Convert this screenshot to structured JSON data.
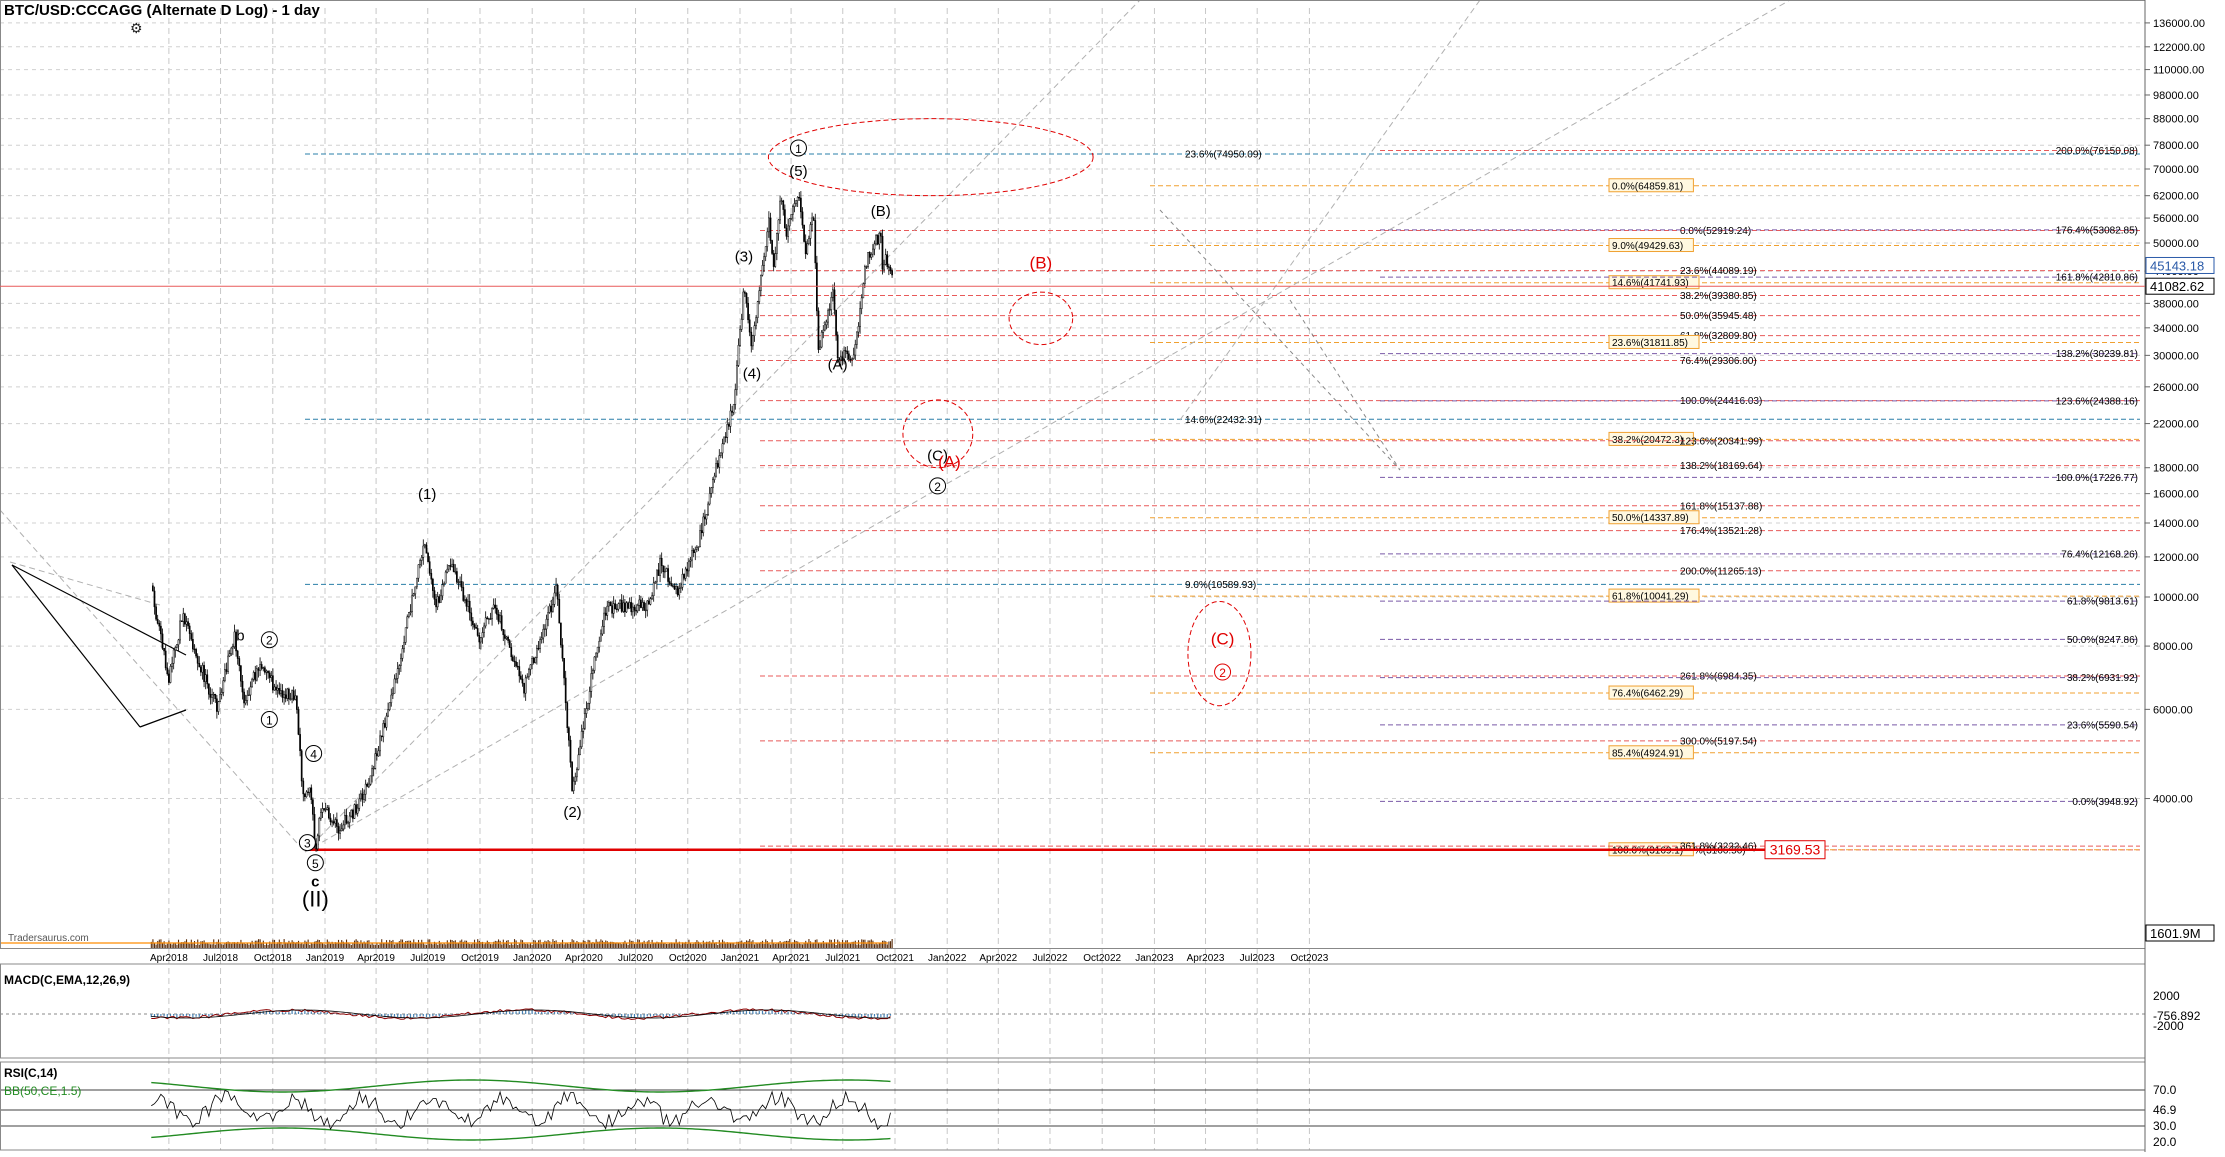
{
  "header": {
    "title": "BTC/USD:CCCAGG (Alternate D Log) - 1 day",
    "macd_label": "MACD(C,EMA,12,26,9)",
    "rsi_label": "RSI(C,14)",
    "bb_label": "BB(50,CE,1.5)"
  },
  "icons": {
    "settings": "gear-icon"
  },
  "colors": {
    "candles": "#000000",
    "volume": "#5a2d0c",
    "volume_ma": "#ff8c00",
    "fib_red": "#e85a5a",
    "fib_blue": "#2a7fa8",
    "fib_orange": "#f0a030",
    "fib_purple": "#7a5aa8",
    "wave_red": "#e00000",
    "macd_line": "#8b0000",
    "macd_hist": "#4682b4",
    "rsi_band": "#228b22",
    "support_line": "#e00000"
  },
  "price_label_current": "45143.18",
  "price_label_secondary": "41082.62",
  "price_label_support": "3169.53",
  "volume_label": "1601.9M",
  "macd_labels": [
    "2000",
    "-756.892",
    "-2000"
  ],
  "rsi_labels": [
    "70.0",
    "46.9",
    "30.0",
    "20.0"
  ],
  "watermark": "Tradersaurus.com",
  "chart_data": {
    "type": "candlestick",
    "scale": "log",
    "y_axis_ticks": [
      "136000.00",
      "122000.00",
      "110000.00",
      "98000.00",
      "88000.00",
      "78000.00",
      "70000.00",
      "62000.00",
      "56000.00",
      "50000.00",
      "44000.00",
      "38000.00",
      "34000.00",
      "30000.00",
      "26000.00",
      "22000.00",
      "18000.00",
      "16000.00",
      "14000.00",
      "12000.00",
      "10000.00",
      "8000.00",
      "6000.00",
      "4000.00"
    ],
    "x_axis_ticks": [
      "Apr2018",
      "Jul2018",
      "Oct2018",
      "Jan2019",
      "Apr2019",
      "Jul2019",
      "Oct2019",
      "Jan2020",
      "Apr2020",
      "Jul2020",
      "Oct2020",
      "Jan2021",
      "Apr2021",
      "Jul2021",
      "Oct2021",
      "Jan2022",
      "Apr2022",
      "Jul2022",
      "Oct2022",
      "Jan2023",
      "Apr2023",
      "Jul2023",
      "Oct2023"
    ],
    "price_path": [
      [
        "2018-03-01",
        10800
      ],
      [
        "2018-03-10",
        9200
      ],
      [
        "2018-04-01",
        6900
      ],
      [
        "2018-04-25",
        9200
      ],
      [
        "2018-05-25",
        7400
      ],
      [
        "2018-06-25",
        6000
      ],
      [
        "2018-07-25",
        8400
      ],
      [
        "2018-08-12",
        6100
      ],
      [
        "2018-09-05",
        7300
      ],
      [
        "2018-10-10",
        6550
      ],
      [
        "2018-11-10",
        6400
      ],
      [
        "2018-11-25",
        3900
      ],
      [
        "2018-12-05",
        4300
      ],
      [
        "2018-12-15",
        3200
      ],
      [
        "2018-12-28",
        3900
      ],
      [
        "2019-01-25",
        3500
      ],
      [
        "2019-03-01",
        3850
      ],
      [
        "2019-04-03",
        4900
      ],
      [
        "2019-05-15",
        7800
      ],
      [
        "2019-06-26",
        13000
      ],
      [
        "2019-07-15",
        9500
      ],
      [
        "2019-08-10",
        11800
      ],
      [
        "2019-09-30",
        8300
      ],
      [
        "2019-10-26",
        9700
      ],
      [
        "2019-12-17",
        6600
      ],
      [
        "2020-01-10",
        7900
      ],
      [
        "2020-02-13",
        10400
      ],
      [
        "2020-03-12",
        4100
      ],
      [
        "2020-04-15",
        7000
      ],
      [
        "2020-05-10",
        9500
      ],
      [
        "2020-06-10",
        9600
      ],
      [
        "2020-07-25",
        9700
      ],
      [
        "2020-08-15",
        11800
      ],
      [
        "2020-09-10",
        10200
      ],
      [
        "2020-10-20",
        12800
      ],
      [
        "2020-11-25",
        19000
      ],
      [
        "2020-12-20",
        23800
      ],
      [
        "2021-01-08",
        40500
      ],
      [
        "2021-01-22",
        31000
      ],
      [
        "2021-02-21",
        56000
      ],
      [
        "2021-02-28",
        44000
      ],
      [
        "2021-03-13",
        61000
      ],
      [
        "2021-03-25",
        52000
      ],
      [
        "2021-04-14",
        64000
      ],
      [
        "2021-04-25",
        48000
      ],
      [
        "2021-05-10",
        57000
      ],
      [
        "2021-05-19",
        31000
      ],
      [
        "2021-06-15",
        40000
      ],
      [
        "2021-06-22",
        30000
      ],
      [
        "2021-07-20",
        29800
      ],
      [
        "2021-08-14",
        48000
      ],
      [
        "2021-08-22",
        48500
      ],
      [
        "2021-09-06",
        52900
      ],
      [
        "2021-09-08",
        45143
      ],
      [
        "2021-09-15",
        47000
      ],
      [
        "2021-09-28",
        41082
      ]
    ],
    "support_line_value": 3169.53,
    "fib_labels": [
      {
        "text": "23.6%(74950.09)",
        "value": 74950.09,
        "color": "fib_blue"
      },
      {
        "text": "0.0%(64859.81)",
        "value": 64859.81,
        "color": "fib_orange",
        "boxed": true
      },
      {
        "text": "0.0%(52919.24)",
        "value": 52919.24,
        "color": "fib_red"
      },
      {
        "text": "9.0%(49429.63)",
        "value": 49429.63,
        "color": "fib_orange",
        "boxed": true
      },
      {
        "text": "23.6%(44089.19)",
        "value": 44089.19,
        "color": "fib_red"
      },
      {
        "text": "14.6%(41741.93)",
        "value": 41741.93,
        "color": "fib_orange",
        "boxed": true
      },
      {
        "text": "38.2%(39380.85)",
        "value": 39380.85,
        "color": "fib_red"
      },
      {
        "text": "50.0%(35945.48)",
        "value": 35945.48,
        "color": "fib_red"
      },
      {
        "text": "61.8%(32809.80)",
        "value": 32809.8,
        "color": "fib_red"
      },
      {
        "text": "23.6%(31811.85)",
        "value": 31811.85,
        "color": "fib_orange",
        "boxed": true
      },
      {
        "text": "76.4%(29306.00)",
        "value": 29306.0,
        "color": "fib_red"
      },
      {
        "text": "100.0%(24416.03)",
        "value": 24416.03,
        "color": "fib_red"
      },
      {
        "text": "14.6%(22432.31)",
        "value": 22432.31,
        "color": "fib_blue"
      },
      {
        "text": "38.2%(20472.3)",
        "value": 20472.3,
        "color": "fib_orange",
        "boxed": true
      },
      {
        "text": "123.6%(20341.99)",
        "value": 20341.99,
        "color": "fib_red"
      },
      {
        "text": "138.2%(18169.64)",
        "value": 18169.64,
        "color": "fib_red"
      },
      {
        "text": "161.8%(15137.88)",
        "value": 15137.88,
        "color": "fib_red"
      },
      {
        "text": "50.0%(14337.89)",
        "value": 14337.89,
        "color": "fib_orange",
        "boxed": true
      },
      {
        "text": "176.4%(13521.28)",
        "value": 13521.28,
        "color": "fib_red"
      },
      {
        "text": "200.0%(11265.13)",
        "value": 11265.13,
        "color": "fib_red"
      },
      {
        "text": "9.0%(10589.93)",
        "value": 10589.93,
        "color": "fib_blue"
      },
      {
        "text": "61.8%(10041.29)",
        "value": 10041.29,
        "color": "fib_orange",
        "boxed": true
      },
      {
        "text": "261.8%(6984.35)",
        "value": 6984.35,
        "color": "fib_red"
      },
      {
        "text": "76.4%(6462.29)",
        "value": 6462.29,
        "color": "fib_orange",
        "boxed": true
      },
      {
        "text": "300.0%(5197.54)",
        "value": 5197.54,
        "color": "fib_red"
      },
      {
        "text": "85.4%(4924.91)",
        "value": 4924.91,
        "color": "fib_orange",
        "boxed": true
      },
      {
        "text": "0.0%(3166.50)",
        "value": 3166.5,
        "color": "fib_red"
      },
      {
        "text": "100.0%(3169.1)",
        "value": 3169.1,
        "color": "fib_orange",
        "boxed": true
      },
      {
        "text": "361.8%(3222.46)",
        "value": 3222.46,
        "color": "fib_red"
      }
    ],
    "right_fib_labels": [
      {
        "text": "200.0%(76150.08)",
        "value": 76150.08,
        "color": "fib_red"
      },
      {
        "text": "176.4%(53082.85)",
        "value": 53082.85,
        "color": "fib_purple"
      },
      {
        "text": "161.8%(42810.86)",
        "value": 42810.86,
        "color": "fib_purple"
      },
      {
        "text": "138.2%(30239.81)",
        "value": 30239.81,
        "color": "fib_purple"
      },
      {
        "text": "123.6%(24388.16)",
        "value": 24388.16,
        "color": "fib_purple"
      },
      {
        "text": "100.0%(17226.77)",
        "value": 17226.77,
        "color": "fib_purple"
      },
      {
        "text": "76.4%(12168.26)",
        "value": 12168.26,
        "color": "fib_purple"
      },
      {
        "text": "61.8%(9813.61)",
        "value": 9813.61,
        "color": "fib_purple"
      },
      {
        "text": "50.0%(8247.86)",
        "value": 8247.86,
        "color": "fib_purple"
      },
      {
        "text": "38.2%(6931.92)",
        "value": 6931.92,
        "color": "fib_purple"
      },
      {
        "text": "23.6%(5590.54)",
        "value": 5590.54,
        "color": "fib_purple"
      },
      {
        "text": "0.0%(3948.92)",
        "value": 3948.92,
        "color": "fib_purple"
      }
    ],
    "wave_labels": [
      {
        "text": "b",
        "date": "2018-08-05",
        "price": 8200,
        "color": "black"
      },
      {
        "text": "2",
        "date": "2018-09-25",
        "price": 8050,
        "color": "black",
        "circled": true
      },
      {
        "text": "1",
        "date": "2018-09-25",
        "price": 5600,
        "color": "black",
        "circled": true
      },
      {
        "text": "4",
        "date": "2018-12-12",
        "price": 4800,
        "color": "black",
        "circled": true
      },
      {
        "text": "3",
        "date": "2018-12-01",
        "price": 3200,
        "color": "black",
        "circled": true
      },
      {
        "text": "5",
        "date": "2018-12-15",
        "price": 2920,
        "color": "black",
        "circled": true
      },
      {
        "text": "c",
        "date": "2018-12-15",
        "price": 2680,
        "color": "black",
        "bold": true
      },
      {
        "text": "(II)",
        "date": "2018-12-15",
        "price": 2450,
        "color": "black",
        "large": true
      },
      {
        "text": "(1)",
        "date": "2019-06-30",
        "price": 15600,
        "color": "black"
      },
      {
        "text": "(2)",
        "date": "2020-03-12",
        "price": 3680,
        "color": "black"
      },
      {
        "text": "(3)",
        "date": "2021-01-08",
        "price": 46000,
        "color": "black"
      },
      {
        "text": "(4)",
        "date": "2021-01-22",
        "price": 27000,
        "color": "black"
      },
      {
        "text": "(5)",
        "date": "2021-04-14",
        "price": 67800,
        "color": "black"
      },
      {
        "text": "1",
        "date": "2021-04-14",
        "price": 75300,
        "color": "black",
        "circled": true
      },
      {
        "text": "(A)",
        "date": "2021-06-22",
        "price": 28100,
        "color": "black"
      },
      {
        "text": "(B)",
        "date": "2021-09-06",
        "price": 56500,
        "color": "black"
      },
      {
        "text": "(C)",
        "date": "2021-12-15",
        "price": 18600,
        "color": "black"
      },
      {
        "text": "2",
        "date": "2021-12-15",
        "price": 16200,
        "color": "black",
        "circled": true
      },
      {
        "text": "(A)",
        "date": "2022-01-05",
        "price": 18000,
        "color": "red"
      },
      {
        "text": "(B)",
        "date": "2022-06-15",
        "price": 44500,
        "color": "red"
      },
      {
        "text": "(C)",
        "date": "2023-05-01",
        "price": 8050,
        "color": "red"
      },
      {
        "text": "2",
        "date": "2023-05-01",
        "price": 6950,
        "color": "red",
        "circled": true
      }
    ],
    "target_ellipses": [
      {
        "date_from": "2021-02-20",
        "date_to": "2022-09-15",
        "price_from": 62000,
        "price_to": 88000
      },
      {
        "date_from": "2022-04-20",
        "date_to": "2022-08-10",
        "price_from": 31500,
        "price_to": 40000
      },
      {
        "date_from": "2021-10-15",
        "date_to": "2022-02-15",
        "price_from": 18000,
        "price_to": 24500
      },
      {
        "date_from": "2023-03-01",
        "date_to": "2023-06-20",
        "price_from": 6100,
        "price_to": 9800
      }
    ]
  }
}
